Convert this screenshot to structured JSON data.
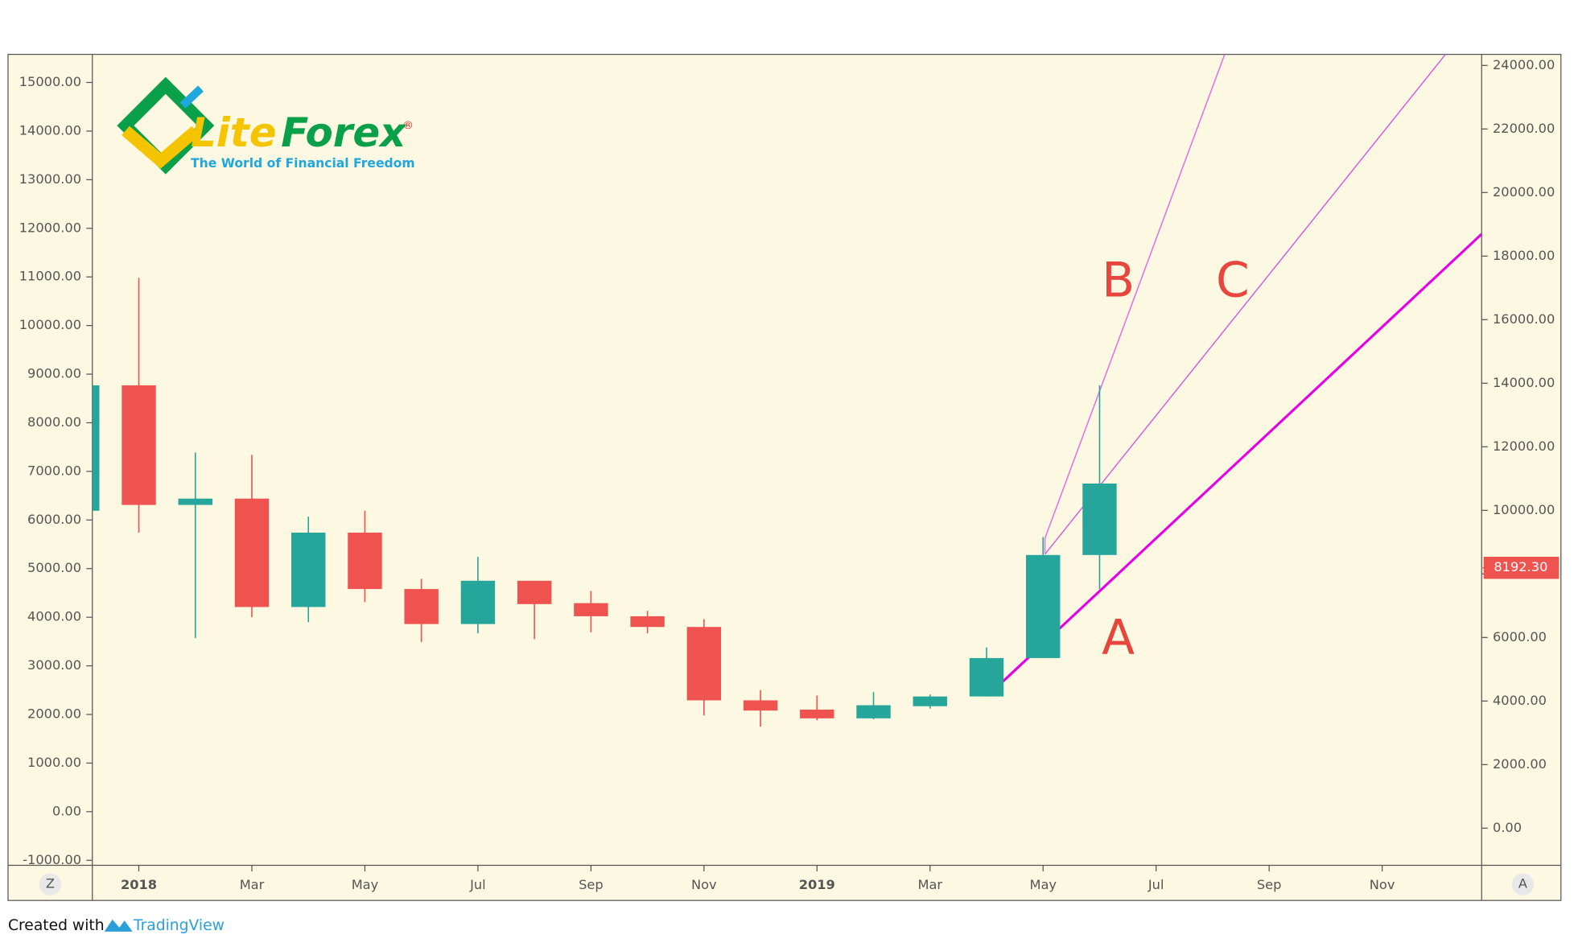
{
  "chart_data": {
    "type": "candlestick",
    "open": [
      6190,
      8770,
      6310,
      6440,
      4210,
      5740,
      4580,
      3860,
      4750,
      4290,
      4020,
      3800,
      2290,
      2100,
      1920,
      2170,
      2370,
      3160,
      5280
    ],
    "high": [
      8770,
      10980,
      7390,
      7340,
      6070,
      6190,
      4790,
      5240,
      4750,
      4540,
      4130,
      3960,
      2500,
      2390,
      2460,
      2410,
      3380,
      5650,
      8770
    ],
    "low": [
      6190,
      5740,
      3570,
      4000,
      3900,
      4310,
      3490,
      3670,
      3550,
      3690,
      3670,
      1980,
      1750,
      1880,
      1900,
      2120,
      2370,
      3160,
      4580
    ],
    "close": [
      8770,
      6310,
      6440,
      4210,
      5740,
      4580,
      3860,
      4750,
      4270,
      4020,
      3800,
      2290,
      2080,
      1920,
      2190,
      2370,
      3160,
      5280,
      6750
    ],
    "up_color": "#26a69a",
    "down_color": "#ef5350",
    "xticks": [
      "2018",
      "Mar",
      "May",
      "Jul",
      "Sep",
      "Nov",
      "2019",
      "Mar",
      "May",
      "Jul",
      "Sep",
      "Nov"
    ],
    "ylim": [
      -1000,
      15000
    ],
    "yticks": [
      {
        "value": 15000,
        "label": "15000.00"
      },
      {
        "value": 14000,
        "label": "14000.00"
      },
      {
        "value": 13000,
        "label": "13000.00"
      },
      {
        "value": 12000,
        "label": "12000.00"
      },
      {
        "value": 11000,
        "label": "11000.00"
      },
      {
        "value": 10000,
        "label": "10000.00"
      },
      {
        "value": 9000,
        "label": "9000.00"
      },
      {
        "value": 8000,
        "label": "8000.00"
      },
      {
        "value": 7000,
        "label": "7000.00"
      },
      {
        "value": 6000,
        "label": "6000.00"
      },
      {
        "value": 5000,
        "label": "5000.00"
      },
      {
        "value": 4000,
        "label": "4000.00"
      },
      {
        "value": 3000,
        "label": "3000.00"
      },
      {
        "value": 2000,
        "label": "2000.00"
      },
      {
        "value": 1000,
        "label": "1000.00"
      },
      {
        "value": 0,
        "label": "0.00"
      },
      {
        "value": -1000,
        "label": "-1000.00"
      }
    ],
    "y2lim": [
      0,
      24000
    ],
    "y2ticks": [
      {
        "value": 24000,
        "label": "24000.00"
      },
      {
        "value": 22000,
        "label": "22000.00"
      },
      {
        "value": 20000,
        "label": "20000.00"
      },
      {
        "value": 18000,
        "label": "18000.00"
      },
      {
        "value": 16000,
        "label": "16000.00"
      },
      {
        "value": 14000,
        "label": "14000.00"
      },
      {
        "value": 12000,
        "label": "12000.00"
      },
      {
        "value": 10000,
        "label": "10000.00"
      },
      {
        "value": 8000,
        "label": "8000.00"
      },
      {
        "value": 6000,
        "label": "6000.00"
      },
      {
        "value": 4000,
        "label": "4000.00"
      },
      {
        "value": 2000,
        "label": "2000.00"
      },
      {
        "value": 0,
        "label": "0.00"
      }
    ],
    "last_price": {
      "value": 8192.3,
      "label": "8192.30"
    },
    "annotations": [
      "A",
      "B",
      "C"
    ]
  },
  "logo": {
    "lite": "Lite",
    "forex": "Forex",
    "mark": "®",
    "tagline": "The World of Financial Freedom"
  },
  "ui": {
    "left_button": "Z",
    "right_button": "A",
    "created_with": "Created with",
    "brand": "TradingView"
  }
}
